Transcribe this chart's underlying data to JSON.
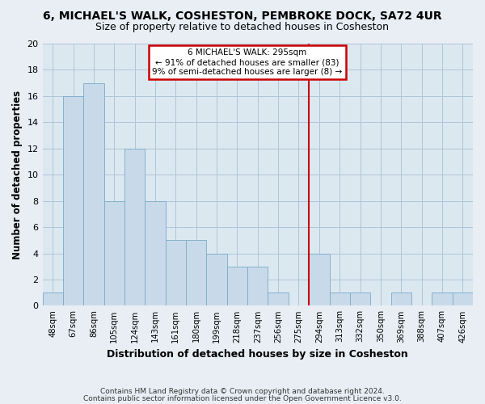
{
  "title": "6, MICHAEL'S WALK, COSHESTON, PEMBROKE DOCK, SA72 4UR",
  "subtitle": "Size of property relative to detached houses in Cosheston",
  "xlabel": "Distribution of detached houses by size in Cosheston",
  "ylabel": "Number of detached properties",
  "bin_labels": [
    "48sqm",
    "67sqm",
    "86sqm",
    "105sqm",
    "124sqm",
    "143sqm",
    "161sqm",
    "180sqm",
    "199sqm",
    "218sqm",
    "237sqm",
    "256sqm",
    "275sqm",
    "294sqm",
    "313sqm",
    "332sqm",
    "350sqm",
    "369sqm",
    "388sqm",
    "407sqm",
    "426sqm"
  ],
  "bar_heights": [
    1,
    16,
    17,
    8,
    12,
    8,
    5,
    5,
    4,
    3,
    3,
    1,
    0,
    4,
    1,
    1,
    0,
    1,
    0,
    1,
    1
  ],
  "bar_color": "#c8daea",
  "bar_edge_color": "#7aaac8",
  "vline_color": "#cc0000",
  "annotation_text_line1": "6 MICHAEL'S WALK: 295sqm",
  "annotation_text_line2": "← 91% of detached houses are smaller (83)",
  "annotation_text_line3": "9% of semi-detached houses are larger (8) →",
  "ylim": [
    0,
    20
  ],
  "yticks": [
    0,
    2,
    4,
    6,
    8,
    10,
    12,
    14,
    16,
    18,
    20
  ],
  "footer_line1": "Contains HM Land Registry data © Crown copyright and database right 2024.",
  "footer_line2": "Contains public sector information licensed under the Open Government Licence v3.0.",
  "fig_background": "#e8eef4",
  "plot_background": "#dce8f0",
  "grid_color": "#b0c4d8",
  "title_fontsize": 10,
  "subtitle_fontsize": 9
}
